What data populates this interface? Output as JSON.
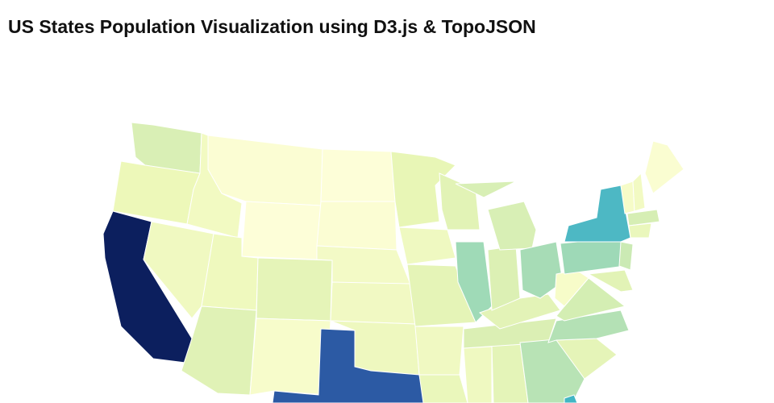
{
  "title": "US States Population Visualization using D3.js & TopoJSON"
}
